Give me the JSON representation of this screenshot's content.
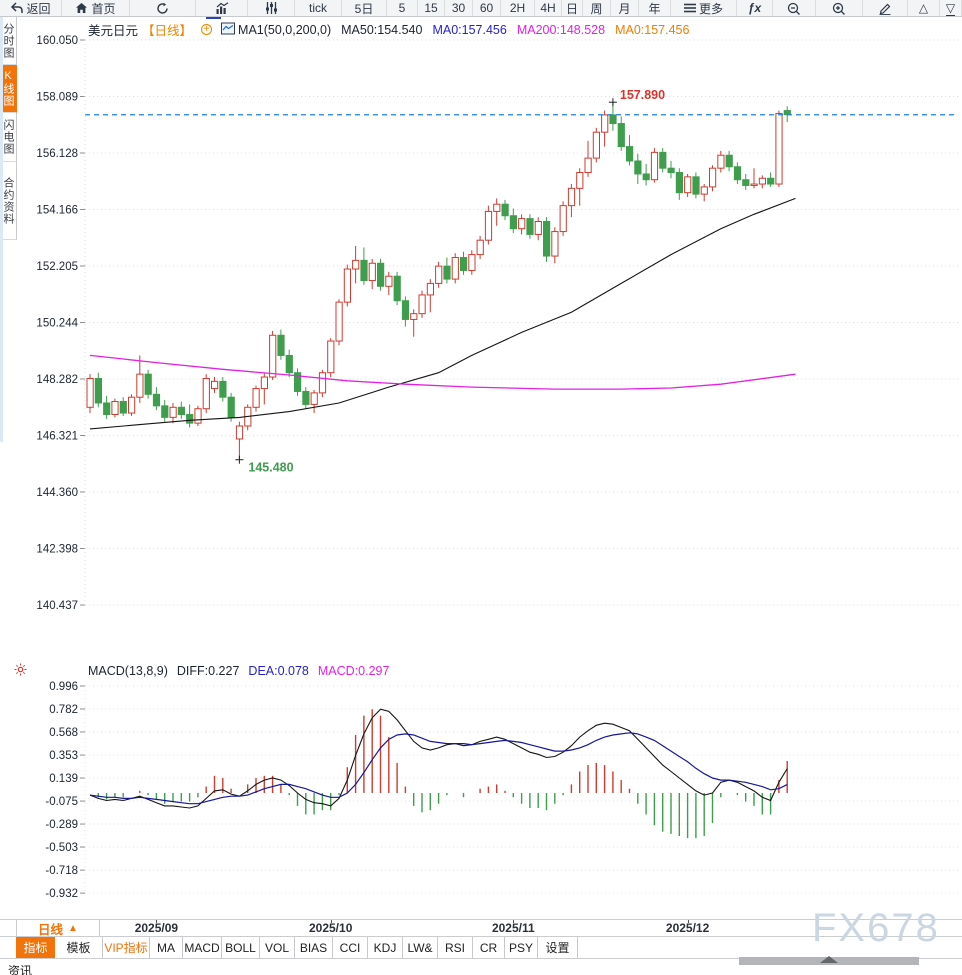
{
  "topbar": {
    "items": [
      {
        "name": "back",
        "icon": "back-arrow-icon",
        "label": "返回"
      },
      {
        "name": "home",
        "icon": "home-icon",
        "label": "首页"
      },
      {
        "name": "refresh",
        "icon": "refresh-icon",
        "label": ""
      },
      {
        "name": "chart-type",
        "icon": "bar-chart-icon",
        "label": ""
      },
      {
        "name": "indicator-settings",
        "icon": "sliders-icon",
        "label": ""
      },
      {
        "name": "tick-period",
        "icon": "",
        "label": "tick"
      },
      {
        "name": "period-5d",
        "icon": "",
        "label": "5日"
      },
      {
        "name": "period-5",
        "icon": "",
        "label": "5"
      },
      {
        "name": "period-15",
        "icon": "",
        "label": "15"
      },
      {
        "name": "period-30",
        "icon": "",
        "label": "30"
      },
      {
        "name": "period-60",
        "icon": "",
        "label": "60"
      },
      {
        "name": "period-2h",
        "icon": "",
        "label": "2H"
      },
      {
        "name": "period-4h",
        "icon": "",
        "label": "4H"
      },
      {
        "name": "period-day",
        "icon": "",
        "label": "日"
      },
      {
        "name": "period-week",
        "icon": "",
        "label": "周"
      },
      {
        "name": "period-month",
        "icon": "",
        "label": "月"
      },
      {
        "name": "period-year",
        "icon": "",
        "label": "年"
      },
      {
        "name": "more-menu",
        "icon": "menu-icon",
        "label": "更多"
      },
      {
        "name": "fx-functions",
        "icon": "",
        "label": "ƒx",
        "cls": "fx"
      },
      {
        "name": "zoom-out",
        "icon": "zoom-out-icon",
        "label": ""
      },
      {
        "name": "zoom-in",
        "icon": "zoom-in-icon",
        "label": ""
      },
      {
        "name": "draw-tool",
        "icon": "pencil-icon",
        "label": ""
      },
      {
        "name": "triangle-up-tool",
        "icon": "triangle-up-icon",
        "label": ""
      },
      {
        "name": "triangle-down-tool",
        "icon": "triangle-down-icon",
        "label": ""
      }
    ]
  },
  "sidebar": {
    "items": [
      {
        "label": "分时图",
        "active": false
      },
      {
        "label": "K线图",
        "active": true
      },
      {
        "label": "闪电图",
        "active": false
      },
      {
        "label": "合约资料",
        "active": false
      }
    ]
  },
  "main_header": {
    "symbol": "美元日元",
    "period_tag": "【日线】",
    "expand_icon": "circle-plus-icon",
    "chart_icon": "mini-chart-icon",
    "legend": [
      {
        "text": "MA1(50,0,200,0)",
        "color": "#1c2430"
      },
      {
        "text": "MA50:154.540",
        "color": "#1c2430"
      },
      {
        "text": "MA0:157.456",
        "color": "#2421d6"
      },
      {
        "text": "MA200:148.528",
        "color": "#e321e3"
      },
      {
        "text": "MA0:157.456",
        "color": "#f07d00"
      }
    ]
  },
  "macd_header": {
    "items": [
      {
        "text": "MACD(13,8,9)",
        "color": "#1c2430"
      },
      {
        "text": "DIFF:0.227",
        "color": "#1c2430"
      },
      {
        "text": "DEA:0.078",
        "color": "#2421d6"
      },
      {
        "text": "MACD:0.297",
        "color": "#e321e3"
      }
    ]
  },
  "xaxis": {
    "period_button": {
      "label": "日线",
      "arrow": "▲"
    },
    "month_labels": [
      {
        "index": 8,
        "label": "2025/09"
      },
      {
        "index": 29,
        "label": "2025/10"
      },
      {
        "index": 51,
        "label": "2025/11"
      },
      {
        "index": 72,
        "label": "2025/12"
      }
    ]
  },
  "bottom_toolbar": {
    "items": [
      {
        "label": "指标",
        "active": true
      },
      {
        "label": "模板"
      },
      {
        "label": "VIP指标",
        "vip": true
      },
      {
        "label": "MA"
      },
      {
        "label": "MACD"
      },
      {
        "label": "BOLL"
      },
      {
        "label": "VOL"
      },
      {
        "label": "BIAS"
      },
      {
        "label": "CCI"
      },
      {
        "label": "KDJ"
      },
      {
        "label": "LW&"
      },
      {
        "label": "RSI"
      },
      {
        "label": "CR"
      },
      {
        "label": "PSY"
      },
      {
        "label": "设置"
      }
    ]
  },
  "bottom_partial_tab": "资讯",
  "watermark": "FX678",
  "chart_data": [
    {
      "type": "candlestick",
      "title": "美元日元 日线",
      "y_ticks": [
        "160.050",
        "158.089",
        "156.128",
        "154.166",
        "152.205",
        "150.244",
        "148.282",
        "146.321",
        "144.360",
        "142.398",
        "140.437"
      ],
      "ylim": [
        140.437,
        160.05
      ],
      "grid": true,
      "last_price_line": 157.456,
      "annotations": {
        "high": {
          "index": 63,
          "price": 157.89,
          "label": "157.890"
        },
        "low": {
          "index": 18,
          "price": 145.48,
          "label": "145.480"
        }
      },
      "colors": {
        "up": "#cf3b30",
        "down": "#3f9e4d",
        "ma50": "#141414",
        "ma200": "#e321e3",
        "last_price": "#2080e0",
        "high_label": "#d8332a",
        "low_label": "#3f9e4d"
      },
      "ma50_points": [
        [
          0,
          146.55
        ],
        [
          6,
          146.7
        ],
        [
          12,
          146.85
        ],
        [
          18,
          146.95
        ],
        [
          24,
          147.15
        ],
        [
          30,
          147.45
        ],
        [
          36,
          148.0
        ],
        [
          42,
          148.5
        ],
        [
          46,
          149.1
        ],
        [
          52,
          149.9
        ],
        [
          58,
          150.6
        ],
        [
          64,
          151.6
        ],
        [
          70,
          152.6
        ],
        [
          76,
          153.5
        ],
        [
          80,
          154.0
        ],
        [
          85,
          154.55
        ]
      ],
      "ma200_points": [
        [
          0,
          149.1
        ],
        [
          8,
          148.85
        ],
        [
          16,
          148.62
        ],
        [
          24,
          148.42
        ],
        [
          31,
          148.22
        ],
        [
          38,
          148.1
        ],
        [
          46,
          148.0
        ],
        [
          56,
          147.93
        ],
        [
          64,
          147.93
        ],
        [
          70,
          147.97
        ],
        [
          76,
          148.1
        ],
        [
          85,
          148.45
        ]
      ],
      "ohlc": [
        [
          147.3,
          148.45,
          147.1,
          148.3
        ],
        [
          148.3,
          148.5,
          147.3,
          147.45
        ],
        [
          147.45,
          147.7,
          146.9,
          147.05
        ],
        [
          147.05,
          147.6,
          146.95,
          147.5
        ],
        [
          147.5,
          147.65,
          147.0,
          147.1
        ],
        [
          147.1,
          147.75,
          147.0,
          147.65
        ],
        [
          147.65,
          149.1,
          147.45,
          148.45
        ],
        [
          148.45,
          148.6,
          147.6,
          147.75
        ],
        [
          147.75,
          148.0,
          147.2,
          147.35
        ],
        [
          147.35,
          147.55,
          146.8,
          146.95
        ],
        [
          146.95,
          147.45,
          146.75,
          147.3
        ],
        [
          147.3,
          147.5,
          146.9,
          147.05
        ],
        [
          147.05,
          147.4,
          146.6,
          146.75
        ],
        [
          146.75,
          147.35,
          146.65,
          147.25
        ],
        [
          147.25,
          148.45,
          147.1,
          148.3
        ],
        [
          147.95,
          148.35,
          147.8,
          148.2
        ],
        [
          148.2,
          148.35,
          147.5,
          147.65
        ],
        [
          147.65,
          147.8,
          146.8,
          146.95
        ],
        [
          146.2,
          146.8,
          145.48,
          146.65
        ],
        [
          146.65,
          147.4,
          146.5,
          147.3
        ],
        [
          147.3,
          148.05,
          147.15,
          147.95
        ],
        [
          147.95,
          148.5,
          147.4,
          148.35
        ],
        [
          148.35,
          149.95,
          148.25,
          149.8
        ],
        [
          149.8,
          150.0,
          148.95,
          149.1
        ],
        [
          149.1,
          149.3,
          148.35,
          148.5
        ],
        [
          148.5,
          148.65,
          147.7,
          147.85
        ],
        [
          147.85,
          148.0,
          147.25,
          147.4
        ],
        [
          147.4,
          147.9,
          147.1,
          147.8
        ],
        [
          147.8,
          148.6,
          147.65,
          148.5
        ],
        [
          148.5,
          149.7,
          148.35,
          149.6
        ],
        [
          149.6,
          151.05,
          149.45,
          150.95
        ],
        [
          150.95,
          152.25,
          150.8,
          152.1
        ],
        [
          152.1,
          152.9,
          151.6,
          152.4
        ],
        [
          152.4,
          152.85,
          151.55,
          151.7
        ],
        [
          151.7,
          152.45,
          151.4,
          152.3
        ],
        [
          152.3,
          152.45,
          151.35,
          151.5
        ],
        [
          151.5,
          152.0,
          151.2,
          151.85
        ],
        [
          151.85,
          152.0,
          150.85,
          151.0
        ],
        [
          151.0,
          151.15,
          150.1,
          150.35
        ],
        [
          150.35,
          150.7,
          149.75,
          150.55
        ],
        [
          150.55,
          151.35,
          150.4,
          151.2
        ],
        [
          151.2,
          151.75,
          150.6,
          151.6
        ],
        [
          151.6,
          152.35,
          151.45,
          152.2
        ],
        [
          152.2,
          152.5,
          151.6,
          151.75
        ],
        [
          151.75,
          152.65,
          151.6,
          152.5
        ],
        [
          152.5,
          152.7,
          151.9,
          152.05
        ],
        [
          152.05,
          152.75,
          151.9,
          152.6
        ],
        [
          152.6,
          153.25,
          152.45,
          153.1
        ],
        [
          153.1,
          154.3,
          152.95,
          154.1
        ],
        [
          154.1,
          154.55,
          153.6,
          154.35
        ],
        [
          154.35,
          154.5,
          153.8,
          153.95
        ],
        [
          153.95,
          154.2,
          153.35,
          153.5
        ],
        [
          153.5,
          154.0,
          153.3,
          153.85
        ],
        [
          153.85,
          154.0,
          153.15,
          153.3
        ],
        [
          153.3,
          153.9,
          153.1,
          153.75
        ],
        [
          153.75,
          153.9,
          152.35,
          152.55
        ],
        [
          152.55,
          153.55,
          152.3,
          153.4
        ],
        [
          153.4,
          154.45,
          153.25,
          154.3
        ],
        [
          154.3,
          155.05,
          153.9,
          154.9
        ],
        [
          154.9,
          155.6,
          154.3,
          155.45
        ],
        [
          155.45,
          156.55,
          155.3,
          155.95
        ],
        [
          155.95,
          157.0,
          155.8,
          156.85
        ],
        [
          156.85,
          157.6,
          156.35,
          157.45
        ],
        [
          157.45,
          157.89,
          156.9,
          157.15
        ],
        [
          157.15,
          157.4,
          156.2,
          156.35
        ],
        [
          156.35,
          156.75,
          155.7,
          155.85
        ],
        [
          155.85,
          156.1,
          155.05,
          155.4
        ],
        [
          155.4,
          155.75,
          155.0,
          155.2
        ],
        [
          155.2,
          156.3,
          155.1,
          156.15
        ],
        [
          156.15,
          156.3,
          155.45,
          155.6
        ],
        [
          155.6,
          155.85,
          155.25,
          155.45
        ],
        [
          155.45,
          155.6,
          154.5,
          154.75
        ],
        [
          154.75,
          155.4,
          154.6,
          155.3
        ],
        [
          155.3,
          155.45,
          154.55,
          154.7
        ],
        [
          154.7,
          155.05,
          154.45,
          154.95
        ],
        [
          154.95,
          155.7,
          154.8,
          155.6
        ],
        [
          155.6,
          156.2,
          155.45,
          156.05
        ],
        [
          156.05,
          156.2,
          155.5,
          155.65
        ],
        [
          155.65,
          155.8,
          155.05,
          155.2
        ],
        [
          155.2,
          155.4,
          154.85,
          155.0
        ],
        [
          155.0,
          155.6,
          154.9,
          155.05
        ],
        [
          155.05,
          155.35,
          154.9,
          155.25
        ],
        [
          155.25,
          155.45,
          154.95,
          155.05
        ],
        [
          155.05,
          157.6,
          154.95,
          157.5
        ],
        [
          157.6,
          157.75,
          157.2,
          157.46
        ]
      ]
    },
    {
      "type": "macd",
      "params": "MACD(13,8,9)",
      "y_ticks": [
        "0.996",
        "0.782",
        "0.568",
        "0.353",
        "0.139",
        "-0.075",
        "-0.289",
        "-0.503",
        "-0.718",
        "-0.932"
      ],
      "grid": true,
      "colors": {
        "diff": "#141414",
        "dea": "#16169b",
        "hist_pos": "#cf3b30",
        "hist_neg": "#3f9e4d"
      },
      "diff": [
        -0.02,
        -0.05,
        -0.07,
        -0.06,
        -0.07,
        -0.05,
        -0.03,
        -0.06,
        -0.09,
        -0.12,
        -0.12,
        -0.13,
        -0.14,
        -0.12,
        -0.05,
        0.02,
        0.03,
        -0.01,
        -0.03,
        0.02,
        0.08,
        0.12,
        0.14,
        0.12,
        0.07,
        0.0,
        -0.06,
        -0.09,
        -0.1,
        -0.12,
        -0.05,
        0.12,
        0.35,
        0.55,
        0.7,
        0.78,
        0.76,
        0.68,
        0.58,
        0.48,
        0.42,
        0.4,
        0.42,
        0.45,
        0.46,
        0.44,
        0.45,
        0.48,
        0.5,
        0.52,
        0.5,
        0.46,
        0.42,
        0.38,
        0.36,
        0.33,
        0.34,
        0.38,
        0.44,
        0.52,
        0.58,
        0.63,
        0.65,
        0.64,
        0.61,
        0.58,
        0.5,
        0.42,
        0.34,
        0.26,
        0.2,
        0.14,
        0.08,
        0.02,
        -0.02,
        0.0,
        0.1,
        0.12,
        0.1,
        0.06,
        0.02,
        -0.04,
        -0.07,
        0.1,
        0.227
      ],
      "dea": [
        -0.02,
        -0.03,
        -0.04,
        -0.04,
        -0.05,
        -0.05,
        -0.04,
        -0.05,
        -0.06,
        -0.07,
        -0.08,
        -0.09,
        -0.1,
        -0.1,
        -0.08,
        -0.06,
        -0.04,
        -0.03,
        -0.03,
        -0.02,
        0.01,
        0.04,
        0.06,
        0.08,
        0.08,
        0.06,
        0.04,
        0.01,
        -0.02,
        -0.04,
        -0.04,
        0.0,
        0.08,
        0.19,
        0.31,
        0.42,
        0.5,
        0.54,
        0.55,
        0.54,
        0.51,
        0.48,
        0.47,
        0.46,
        0.46,
        0.46,
        0.45,
        0.46,
        0.47,
        0.48,
        0.49,
        0.48,
        0.47,
        0.45,
        0.43,
        0.41,
        0.39,
        0.39,
        0.4,
        0.42,
        0.45,
        0.49,
        0.52,
        0.54,
        0.55,
        0.56,
        0.55,
        0.52,
        0.49,
        0.44,
        0.39,
        0.34,
        0.29,
        0.23,
        0.18,
        0.14,
        0.12,
        0.12,
        0.11,
        0.1,
        0.08,
        0.06,
        0.03,
        0.04,
        0.078
      ]
    }
  ]
}
